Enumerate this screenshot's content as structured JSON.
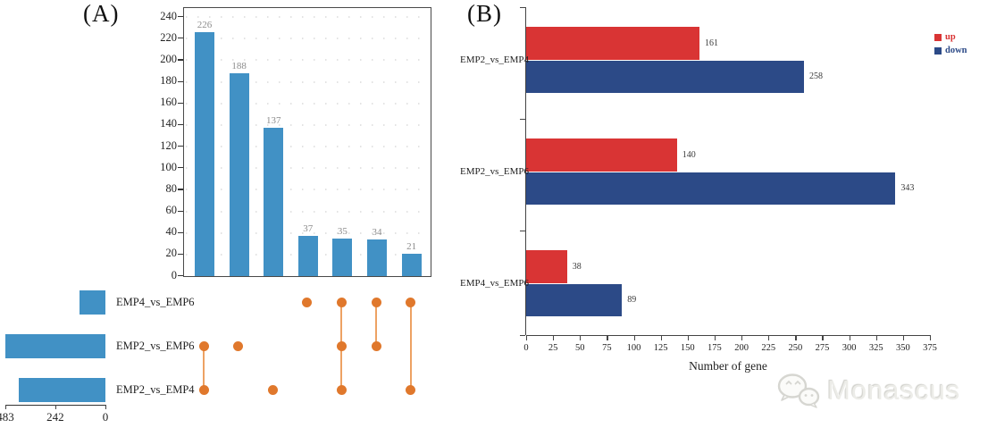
{
  "panelA": {
    "label": "(A)"
  },
  "panelB": {
    "label": "(B)"
  },
  "watermark": {
    "text": "Monascus",
    "logo": "wechat-bubbles-icon"
  },
  "chart_data": [
    {
      "panel": "A",
      "type": "bar",
      "subtype": "upset",
      "title": "",
      "intersections": {
        "values": [
          226,
          188,
          137,
          37,
          35,
          34,
          21
        ],
        "sets": [
          [
            "EMP2_vs_EMP6",
            "EMP2_vs_EMP4"
          ],
          [
            "EMP2_vs_EMP6"
          ],
          [
            "EMP2_vs_EMP4"
          ],
          [
            "EMP4_vs_EMP6"
          ],
          [
            "EMP4_vs_EMP6",
            "EMP2_vs_EMP6",
            "EMP2_vs_EMP4"
          ],
          [
            "EMP4_vs_EMP6",
            "EMP2_vs_EMP6"
          ],
          [
            "EMP4_vs_EMP6",
            "EMP2_vs_EMP4"
          ]
        ]
      },
      "set_rows": [
        {
          "name": "EMP4_vs_EMP6",
          "size": 127
        },
        {
          "name": "EMP2_vs_EMP6",
          "size": 483
        },
        {
          "name": "EMP2_vs_EMP4",
          "size": 419
        }
      ],
      "y_axis": {
        "ticks": [
          0,
          20,
          40,
          60,
          80,
          100,
          120,
          140,
          160,
          180,
          200,
          220,
          240
        ],
        "max": 240,
        "grid": "dotted"
      },
      "set_size_axis": {
        "ticks": [
          483,
          242,
          0
        ],
        "max": 483
      },
      "colors": {
        "bar": "#4191c5",
        "dot": "#e0782c",
        "link": "#eda263",
        "value_label": "#8c8c8c"
      }
    },
    {
      "panel": "B",
      "type": "bar",
      "orientation": "horizontal",
      "title": "",
      "categories": [
        "EMP2_vs_EMP4",
        "EMP2_vs_EMP6",
        "EMP4_vs_EMP6"
      ],
      "series": [
        {
          "name": "up",
          "color": "#d93434",
          "values": [
            161,
            140,
            38
          ]
        },
        {
          "name": "down",
          "color": "#2c4a87",
          "values": [
            258,
            343,
            89
          ]
        }
      ],
      "xlabel": "Number of gene",
      "x_axis": {
        "ticks": [
          0,
          25,
          50,
          75,
          100,
          125,
          150,
          175,
          200,
          225,
          250,
          275,
          300,
          325,
          350,
          375
        ],
        "max": 375
      },
      "legend": {
        "position": "right",
        "entries": [
          {
            "label": "up",
            "color": "#d93434"
          },
          {
            "label": "down",
            "color": "#2c4a87"
          }
        ]
      }
    }
  ]
}
